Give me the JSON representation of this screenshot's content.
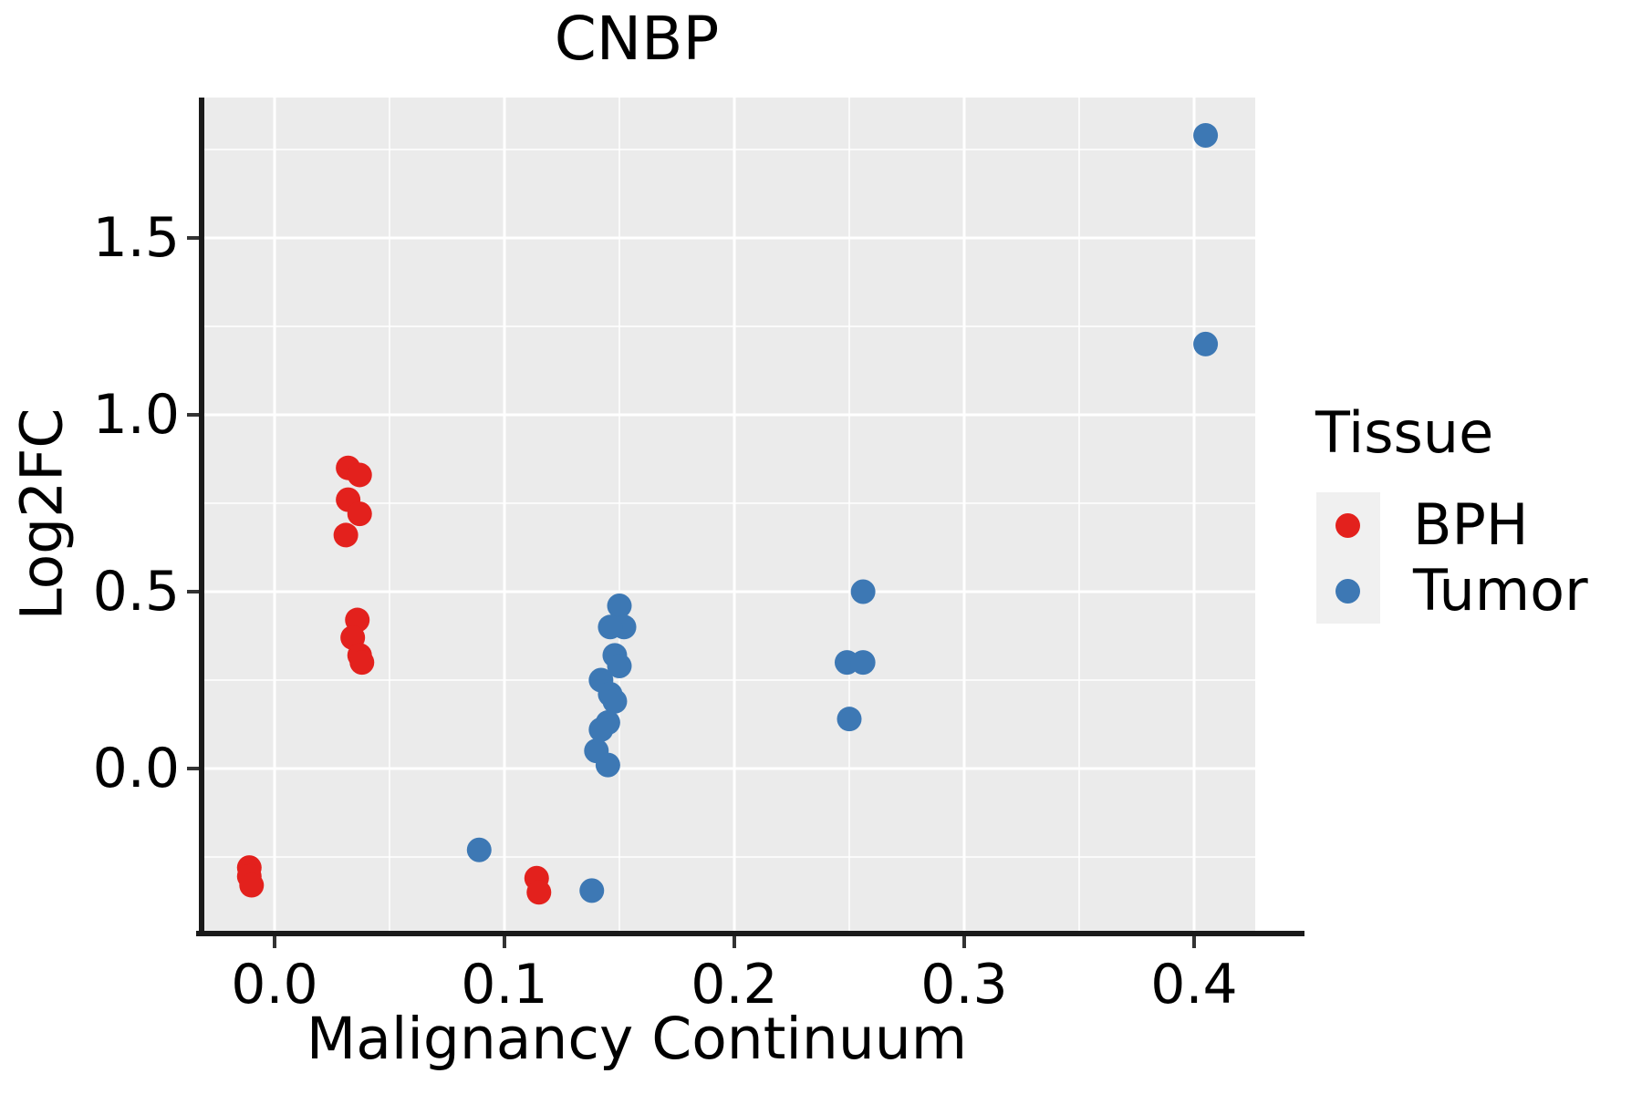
{
  "title": "CNBP",
  "x_axis": {
    "label": "Malignancy Continuum",
    "ticks": [
      {
        "label": "0.0",
        "value": 0.0
      },
      {
        "label": "0.1",
        "value": 0.1
      },
      {
        "label": "0.2",
        "value": 0.2
      },
      {
        "label": "0.3",
        "value": 0.3
      },
      {
        "label": "0.4",
        "value": 0.4
      }
    ],
    "minor_ticks": [
      0.05,
      0.15,
      0.25,
      0.35
    ]
  },
  "y_axis": {
    "label": "Log2FC",
    "ticks": [
      {
        "label": "1.5",
        "value": 1.5
      },
      {
        "label": "1.0",
        "value": 1.0
      },
      {
        "label": "0.5",
        "value": 0.5
      },
      {
        "label": "0.0",
        "value": 0.0
      }
    ],
    "minor_ticks": [
      1.75,
      1.25,
      0.75,
      0.25,
      -0.25
    ]
  },
  "legend": {
    "title": "Tissue",
    "entries": [
      {
        "label": "BPH",
        "color": "#e3211d"
      },
      {
        "label": "Tumor",
        "color": "#3d78b4"
      }
    ]
  },
  "colors": {
    "panel_bg": "#ebebeb",
    "gridline": "#ffffff",
    "axis_line": "#1a1a1a",
    "tick_mark": "#333333",
    "legend_key_bg": "#f0f0f0",
    "text": "#000000"
  },
  "chart_data": {
    "type": "scatter",
    "title": "CNBP",
    "xlabel": "Malignancy Continuum",
    "ylabel": "Log2FC",
    "xlim": [
      -0.031,
      0.427
    ],
    "ylim": [
      -0.46,
      1.9
    ],
    "grid": "on",
    "legend_position": "right",
    "series": [
      {
        "name": "BPH",
        "color": "#e3211d",
        "points": [
          [
            -0.011,
            -0.28
          ],
          [
            -0.011,
            -0.305
          ],
          [
            -0.01,
            -0.33
          ],
          [
            0.032,
            0.85
          ],
          [
            0.037,
            0.83
          ],
          [
            0.032,
            0.76
          ],
          [
            0.037,
            0.72
          ],
          [
            0.031,
            0.66
          ],
          [
            0.036,
            0.42
          ],
          [
            0.034,
            0.37
          ],
          [
            0.037,
            0.32
          ],
          [
            0.038,
            0.3
          ],
          [
            0.114,
            -0.31
          ],
          [
            0.115,
            -0.35
          ]
        ]
      },
      {
        "name": "Tumor",
        "color": "#3d78b4",
        "points": [
          [
            0.089,
            -0.23
          ],
          [
            0.138,
            -0.345
          ],
          [
            0.15,
            0.46
          ],
          [
            0.152,
            0.4
          ],
          [
            0.146,
            0.4
          ],
          [
            0.148,
            0.32
          ],
          [
            0.15,
            0.29
          ],
          [
            0.142,
            0.25
          ],
          [
            0.146,
            0.21
          ],
          [
            0.148,
            0.19
          ],
          [
            0.145,
            0.13
          ],
          [
            0.142,
            0.11
          ],
          [
            0.14,
            0.05
          ],
          [
            0.145,
            0.01
          ],
          [
            0.256,
            0.5
          ],
          [
            0.249,
            0.3
          ],
          [
            0.256,
            0.3
          ],
          [
            0.25,
            0.14
          ],
          [
            0.405,
            1.79
          ],
          [
            0.405,
            1.2
          ]
        ]
      }
    ]
  }
}
